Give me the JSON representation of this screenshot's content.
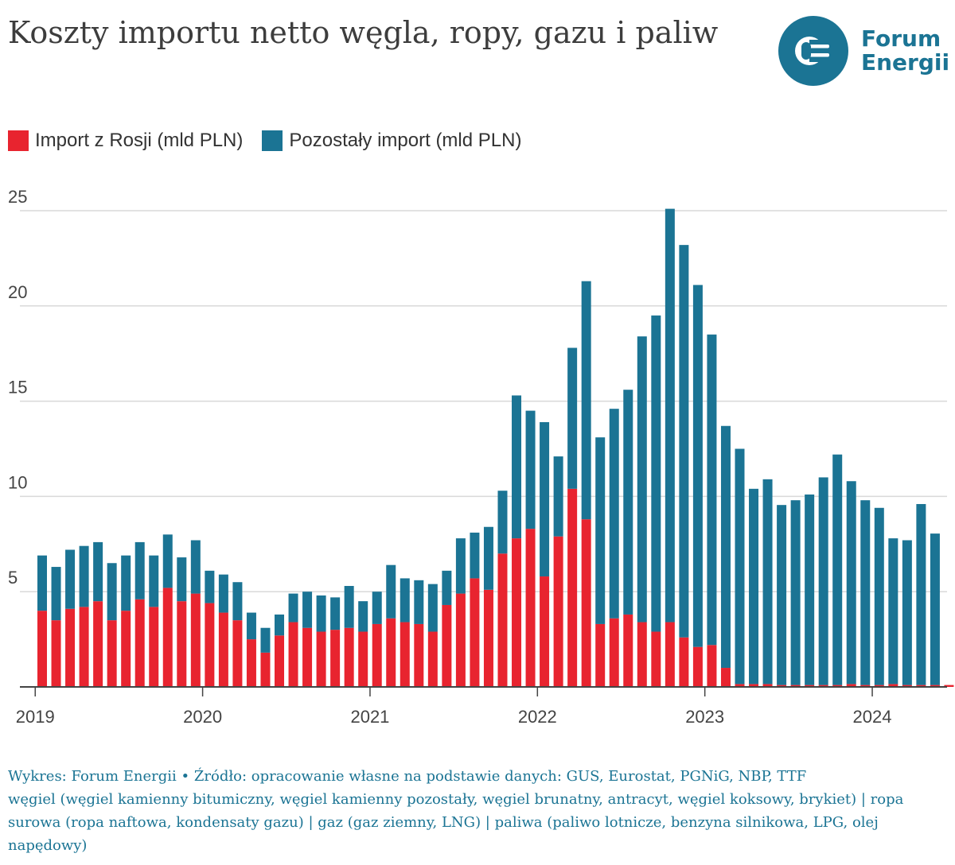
{
  "title": "Koszty importu netto węgla, ropy, gazu i paliw",
  "logo": {
    "line1": "Forum",
    "line2": "Energii",
    "icon": "forum-energii-logo-icon"
  },
  "colors": {
    "russia": "#e8242f",
    "other": "#1b7494",
    "grid": "#d9d9d9",
    "axis": "#444444",
    "tick_text": "#444444"
  },
  "legend": [
    {
      "label": "Import z Rosji (mld PLN)",
      "series": "russia"
    },
    {
      "label": "Pozostały import (mld PLN)",
      "series": "other"
    }
  ],
  "chart_data": {
    "type": "bar",
    "stacked": true,
    "ylim": [
      0,
      25
    ],
    "yticks": [
      5,
      10,
      15,
      20,
      25
    ],
    "xticks": [
      "2019",
      "2020",
      "2021",
      "2022",
      "2023",
      "2024"
    ],
    "x_start": "2019-01",
    "series": [
      {
        "name": "Import z Rosji (mld PLN)",
        "key": "russia",
        "values": [
          4.0,
          3.5,
          4.1,
          4.2,
          4.5,
          3.5,
          4.0,
          4.6,
          4.2,
          5.2,
          4.5,
          4.9,
          4.4,
          3.9,
          3.5,
          2.5,
          1.8,
          2.7,
          3.4,
          3.1,
          2.9,
          3.0,
          3.1,
          2.9,
          3.3,
          3.6,
          3.4,
          3.3,
          2.9,
          4.3,
          4.9,
          5.7,
          5.1,
          7.0,
          7.8,
          8.3,
          5.8,
          7.9,
          10.4,
          8.8,
          3.3,
          3.6,
          3.8,
          3.4,
          2.9,
          3.4,
          2.6,
          2.1,
          2.2,
          1.0,
          0.15,
          0.15,
          0.15,
          0.1,
          0.1,
          0.1,
          0.1,
          0.1,
          0.15,
          0.1,
          0.1,
          0.15,
          0.1,
          0.1,
          0.1,
          0.1,
          0.1
        ]
      },
      {
        "name": "Pozostały import (mld PLN)",
        "key": "other",
        "values": [
          2.9,
          2.8,
          3.1,
          3.2,
          3.1,
          3.0,
          2.9,
          3.0,
          2.7,
          2.8,
          2.3,
          2.8,
          1.7,
          2.0,
          2.0,
          1.4,
          1.3,
          1.1,
          1.5,
          1.9,
          1.9,
          1.7,
          2.2,
          1.6,
          1.7,
          2.8,
          2.3,
          2.3,
          2.5,
          1.8,
          2.9,
          2.4,
          3.3,
          3.3,
          7.5,
          6.2,
          8.1,
          4.2,
          7.4,
          12.5,
          9.8,
          11.0,
          11.8,
          15.0,
          16.6,
          21.7,
          20.6,
          19.0,
          16.3,
          12.7,
          12.35,
          10.25,
          10.75,
          9.45,
          9.7,
          10.0,
          10.9,
          12.1,
          10.65,
          9.7,
          9.3,
          7.65,
          7.6,
          9.5,
          7.95,
          0,
          0
        ]
      }
    ],
    "title": "Koszty importu netto węgla, ropy, gazu i paliw",
    "xlabel": "",
    "ylabel": ""
  },
  "footer": {
    "credit": "Wykres: Forum Energii • Źródło: opracowanie własne na podstawie danych: GUS, Eurostat, PGNiG, NBP, TTF",
    "note": "węgiel (węgiel kamienny bitumiczny, węgiel kamienny pozostały, węgiel brunatny, antracyt, węgiel koksowy, brykiet) | ropa surowa (ropa naftowa, kondensaty gazu) | gaz (gaz ziemny, LNG) | paliwa (paliwo lotnicze, benzyna silnikowa, LPG, olej napędowy)"
  }
}
